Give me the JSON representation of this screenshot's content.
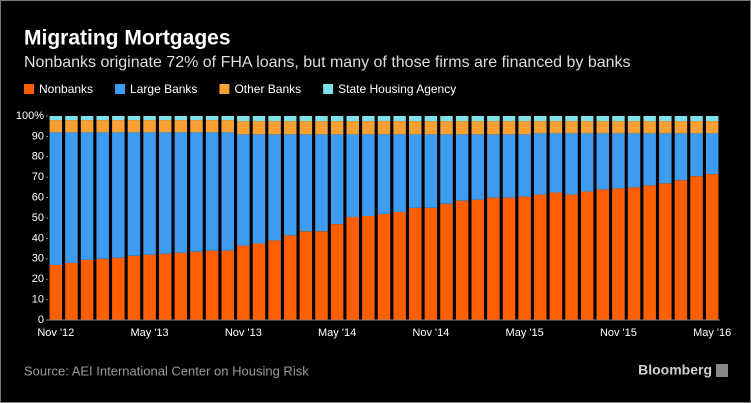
{
  "chart_data": {
    "type": "stacked-bar",
    "title": "Migrating Mortgages",
    "subtitle": "Nonbanks originate 72% of FHA loans, but many of those firms are financed by banks",
    "source": "Source: AEI International Center on Housing Risk",
    "logo": "Bloomberg",
    "categories": [
      "Nov '12",
      null,
      null,
      null,
      null,
      null,
      "May '13",
      null,
      null,
      null,
      null,
      null,
      "Nov '13",
      null,
      null,
      null,
      null,
      null,
      "May '14",
      null,
      null,
      null,
      null,
      null,
      "Nov '14",
      null,
      null,
      null,
      null,
      null,
      "May '15",
      null,
      null,
      null,
      null,
      null,
      "Nov '15",
      null,
      null,
      null,
      null,
      null,
      "May '16"
    ],
    "series": [
      {
        "name": "Nonbanks",
        "color": "#ff5f00",
        "values": [
          27,
          28,
          29.5,
          30,
          30.5,
          31.5,
          32,
          32.5,
          33,
          33.5,
          34,
          34,
          36.5,
          37.5,
          39,
          41.5,
          43.5,
          43.5,
          47,
          50.5,
          51,
          52,
          53,
          55,
          55,
          57,
          58.5,
          59,
          60,
          60,
          60.5,
          61.5,
          62.5,
          61.5,
          63,
          64,
          64.5,
          65,
          66,
          67,
          68.5,
          70.5,
          71.5
        ]
      },
      {
        "name": "Large Banks",
        "color": "#3d9cf0",
        "values": [
          65,
          64,
          62.5,
          62,
          61.5,
          60.5,
          60,
          59.5,
          59,
          58.5,
          58,
          58,
          54.5,
          53.5,
          52,
          49.5,
          47.5,
          47.5,
          44,
          40.5,
          40,
          39,
          38,
          36,
          36,
          34,
          32.5,
          32,
          31,
          31,
          30.5,
          30,
          29,
          30,
          28.5,
          27.5,
          27,
          26.5,
          25.5,
          24.5,
          23,
          21,
          20
        ]
      },
      {
        "name": "Other Banks",
        "color": "#f7a033",
        "values": [
          6,
          6,
          6,
          6,
          6,
          6,
          6,
          6,
          6,
          6,
          6,
          6,
          6.5,
          6.5,
          6.5,
          6.5,
          6.5,
          6.5,
          6.5,
          6.5,
          6.5,
          6.5,
          6.5,
          6.5,
          6.5,
          6.5,
          6.5,
          6.5,
          6.5,
          6.5,
          6.5,
          6,
          6,
          6,
          6,
          6,
          6,
          6,
          6,
          6,
          6,
          6,
          6
        ]
      },
      {
        "name": "State Housing Agency",
        "color": "#7ee0ec",
        "values": [
          2,
          2,
          2,
          2,
          2,
          2,
          2,
          2,
          2,
          2,
          2,
          2,
          2.5,
          2.5,
          2.5,
          2.5,
          2.5,
          2.5,
          2.5,
          2.5,
          2.5,
          2.5,
          2.5,
          2.5,
          2.5,
          2.5,
          2.5,
          2.5,
          2.5,
          2.5,
          2.5,
          2.5,
          2.5,
          2.5,
          2.5,
          2.5,
          2.5,
          2.5,
          2.5,
          2.5,
          2.5,
          2.5,
          2.5
        ]
      }
    ],
    "ylim": [
      0,
      100
    ],
    "yticks": [
      0,
      10,
      20,
      30,
      40,
      50,
      60,
      70,
      80,
      90,
      {
        "value": 100,
        "label": "100%"
      }
    ]
  }
}
